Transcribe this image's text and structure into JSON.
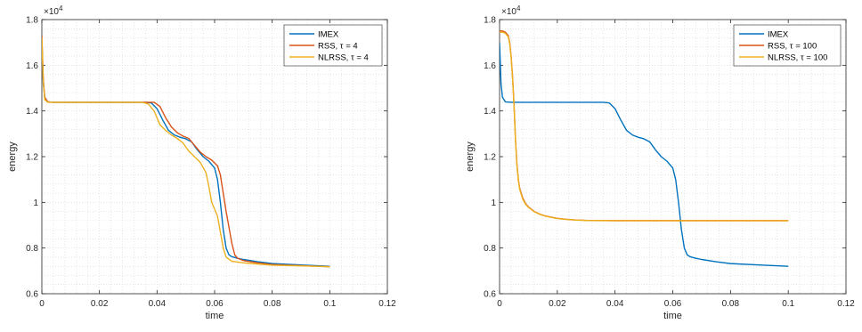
{
  "chart_data": [
    {
      "type": "line",
      "xlabel": "time",
      "ylabel": "energy",
      "xlim": [
        0,
        0.12
      ],
      "ylim": [
        6000,
        18000
      ],
      "xticks": [
        "0",
        "0.02",
        "0.04",
        "0.06",
        "0.08",
        "0.1",
        "0.12"
      ],
      "yticks": [
        "0.6",
        "0.8",
        "1",
        "1.2",
        "1.4",
        "1.6",
        "1.8"
      ],
      "y_exponent_label": "×10",
      "y_exponent_power": "4",
      "grid": "minor-dotted",
      "legend_position": "top-right",
      "legend": [
        "IMEX",
        "RSS, τ = 4",
        "NLRSS, τ = 4"
      ],
      "series": [
        {
          "name": "IMEX",
          "color": "#0072BD",
          "x": [
            0,
            0.0005,
            0.001,
            0.002,
            0.004,
            0.02,
            0.036,
            0.038,
            0.04,
            0.042,
            0.044,
            0.046,
            0.048,
            0.05,
            0.052,
            0.054,
            0.056,
            0.058,
            0.06,
            0.061,
            0.062,
            0.063,
            0.064,
            0.065,
            0.066,
            0.068,
            0.07,
            0.075,
            0.08,
            0.09,
            0.1
          ],
          "y": [
            17000,
            15200,
            14600,
            14400,
            14380,
            14380,
            14380,
            14350,
            14100,
            13600,
            13150,
            12950,
            12850,
            12780,
            12650,
            12300,
            12000,
            11800,
            11500,
            11000,
            10000,
            8800,
            8000,
            7700,
            7620,
            7550,
            7500,
            7400,
            7320,
            7260,
            7200
          ]
        },
        {
          "name": "RSS, τ = 4",
          "color": "#D95319",
          "x": [
            0,
            0.0005,
            0.001,
            0.002,
            0.004,
            0.02,
            0.037,
            0.039,
            0.041,
            0.043,
            0.045,
            0.047,
            0.049,
            0.051,
            0.053,
            0.055,
            0.057,
            0.059,
            0.061,
            0.062,
            0.063,
            0.064,
            0.065,
            0.066,
            0.067,
            0.068,
            0.07,
            0.075,
            0.08,
            0.09,
            0.1
          ],
          "y": [
            17300,
            15400,
            14600,
            14400,
            14380,
            14380,
            14380,
            14380,
            14200,
            13700,
            13300,
            13050,
            12900,
            12800,
            12500,
            12200,
            12000,
            11850,
            11600,
            11200,
            10400,
            9600,
            8900,
            8200,
            7700,
            7550,
            7450,
            7350,
            7280,
            7230,
            7180
          ]
        },
        {
          "name": "NLRSS, τ = 4",
          "color": "#EDB120",
          "x": [
            0,
            0.0005,
            0.001,
            0.002,
            0.004,
            0.02,
            0.035,
            0.037,
            0.039,
            0.041,
            0.043,
            0.045,
            0.047,
            0.049,
            0.051,
            0.053,
            0.055,
            0.057,
            0.058,
            0.059,
            0.06,
            0.061,
            0.062,
            0.063,
            0.064,
            0.066,
            0.07,
            0.075,
            0.08,
            0.09,
            0.1
          ],
          "y": [
            17200,
            15300,
            14500,
            14380,
            14380,
            14380,
            14380,
            14300,
            14000,
            13400,
            13150,
            12950,
            12800,
            12600,
            12250,
            12000,
            11750,
            11300,
            10700,
            10000,
            9700,
            9400,
            8700,
            8000,
            7600,
            7420,
            7350,
            7300,
            7250,
            7220,
            7180
          ]
        }
      ]
    },
    {
      "type": "line",
      "xlabel": "time",
      "ylabel": "energy",
      "xlim": [
        0,
        0.12
      ],
      "ylim": [
        6000,
        18000
      ],
      "xticks": [
        "0",
        "0.02",
        "0.04",
        "0.06",
        "0.08",
        "0.1",
        "0.12"
      ],
      "yticks": [
        "0.6",
        "0.8",
        "1",
        "1.2",
        "1.4",
        "1.6",
        "1.8"
      ],
      "y_exponent_label": "×10",
      "y_exponent_power": "4",
      "grid": "minor-dotted",
      "legend_position": "top-right",
      "legend": [
        "IMEX",
        "RSS, τ = 100",
        "NLRSS, τ = 100"
      ],
      "series": [
        {
          "name": "IMEX",
          "color": "#0072BD",
          "x": [
            0,
            0.0005,
            0.001,
            0.002,
            0.004,
            0.02,
            0.036,
            0.038,
            0.04,
            0.042,
            0.044,
            0.046,
            0.048,
            0.05,
            0.052,
            0.054,
            0.056,
            0.058,
            0.06,
            0.061,
            0.062,
            0.063,
            0.064,
            0.065,
            0.066,
            0.068,
            0.07,
            0.075,
            0.08,
            0.09,
            0.1
          ],
          "y": [
            17000,
            15200,
            14600,
            14400,
            14380,
            14380,
            14380,
            14350,
            14100,
            13600,
            13150,
            12950,
            12850,
            12780,
            12650,
            12300,
            12000,
            11800,
            11500,
            11000,
            10000,
            8800,
            8000,
            7700,
            7620,
            7550,
            7500,
            7400,
            7320,
            7260,
            7200
          ]
        },
        {
          "name": "RSS, τ = 100",
          "color": "#D95319",
          "x": [
            0,
            0.001,
            0.002,
            0.003,
            0.0035,
            0.004,
            0.0045,
            0.005,
            0.0055,
            0.006,
            0.0065,
            0.007,
            0.008,
            0.009,
            0.01,
            0.012,
            0.014,
            0.016,
            0.018,
            0.02,
            0.023,
            0.026,
            0.03,
            0.04,
            0.06,
            0.08,
            0.1
          ],
          "y": [
            17500,
            17500,
            17450,
            17300,
            17000,
            16400,
            15500,
            14300,
            12800,
            11700,
            11000,
            10600,
            10200,
            9950,
            9800,
            9600,
            9480,
            9400,
            9350,
            9300,
            9260,
            9230,
            9210,
            9200,
            9200,
            9200,
            9200
          ]
        },
        {
          "name": "NLRSS, τ = 100",
          "color": "#EDB120",
          "x": [
            0,
            0.001,
            0.002,
            0.003,
            0.0035,
            0.004,
            0.0045,
            0.005,
            0.0055,
            0.006,
            0.0065,
            0.007,
            0.008,
            0.009,
            0.01,
            0.012,
            0.014,
            0.016,
            0.018,
            0.02,
            0.023,
            0.026,
            0.03,
            0.04,
            0.06,
            0.08,
            0.1
          ],
          "y": [
            17450,
            17450,
            17400,
            17250,
            16950,
            16350,
            15450,
            14250,
            12750,
            11650,
            10950,
            10550,
            10150,
            9920,
            9780,
            9590,
            9470,
            9390,
            9340,
            9290,
            9250,
            9225,
            9205,
            9195,
            9195,
            9195,
            9195
          ]
        }
      ]
    }
  ]
}
